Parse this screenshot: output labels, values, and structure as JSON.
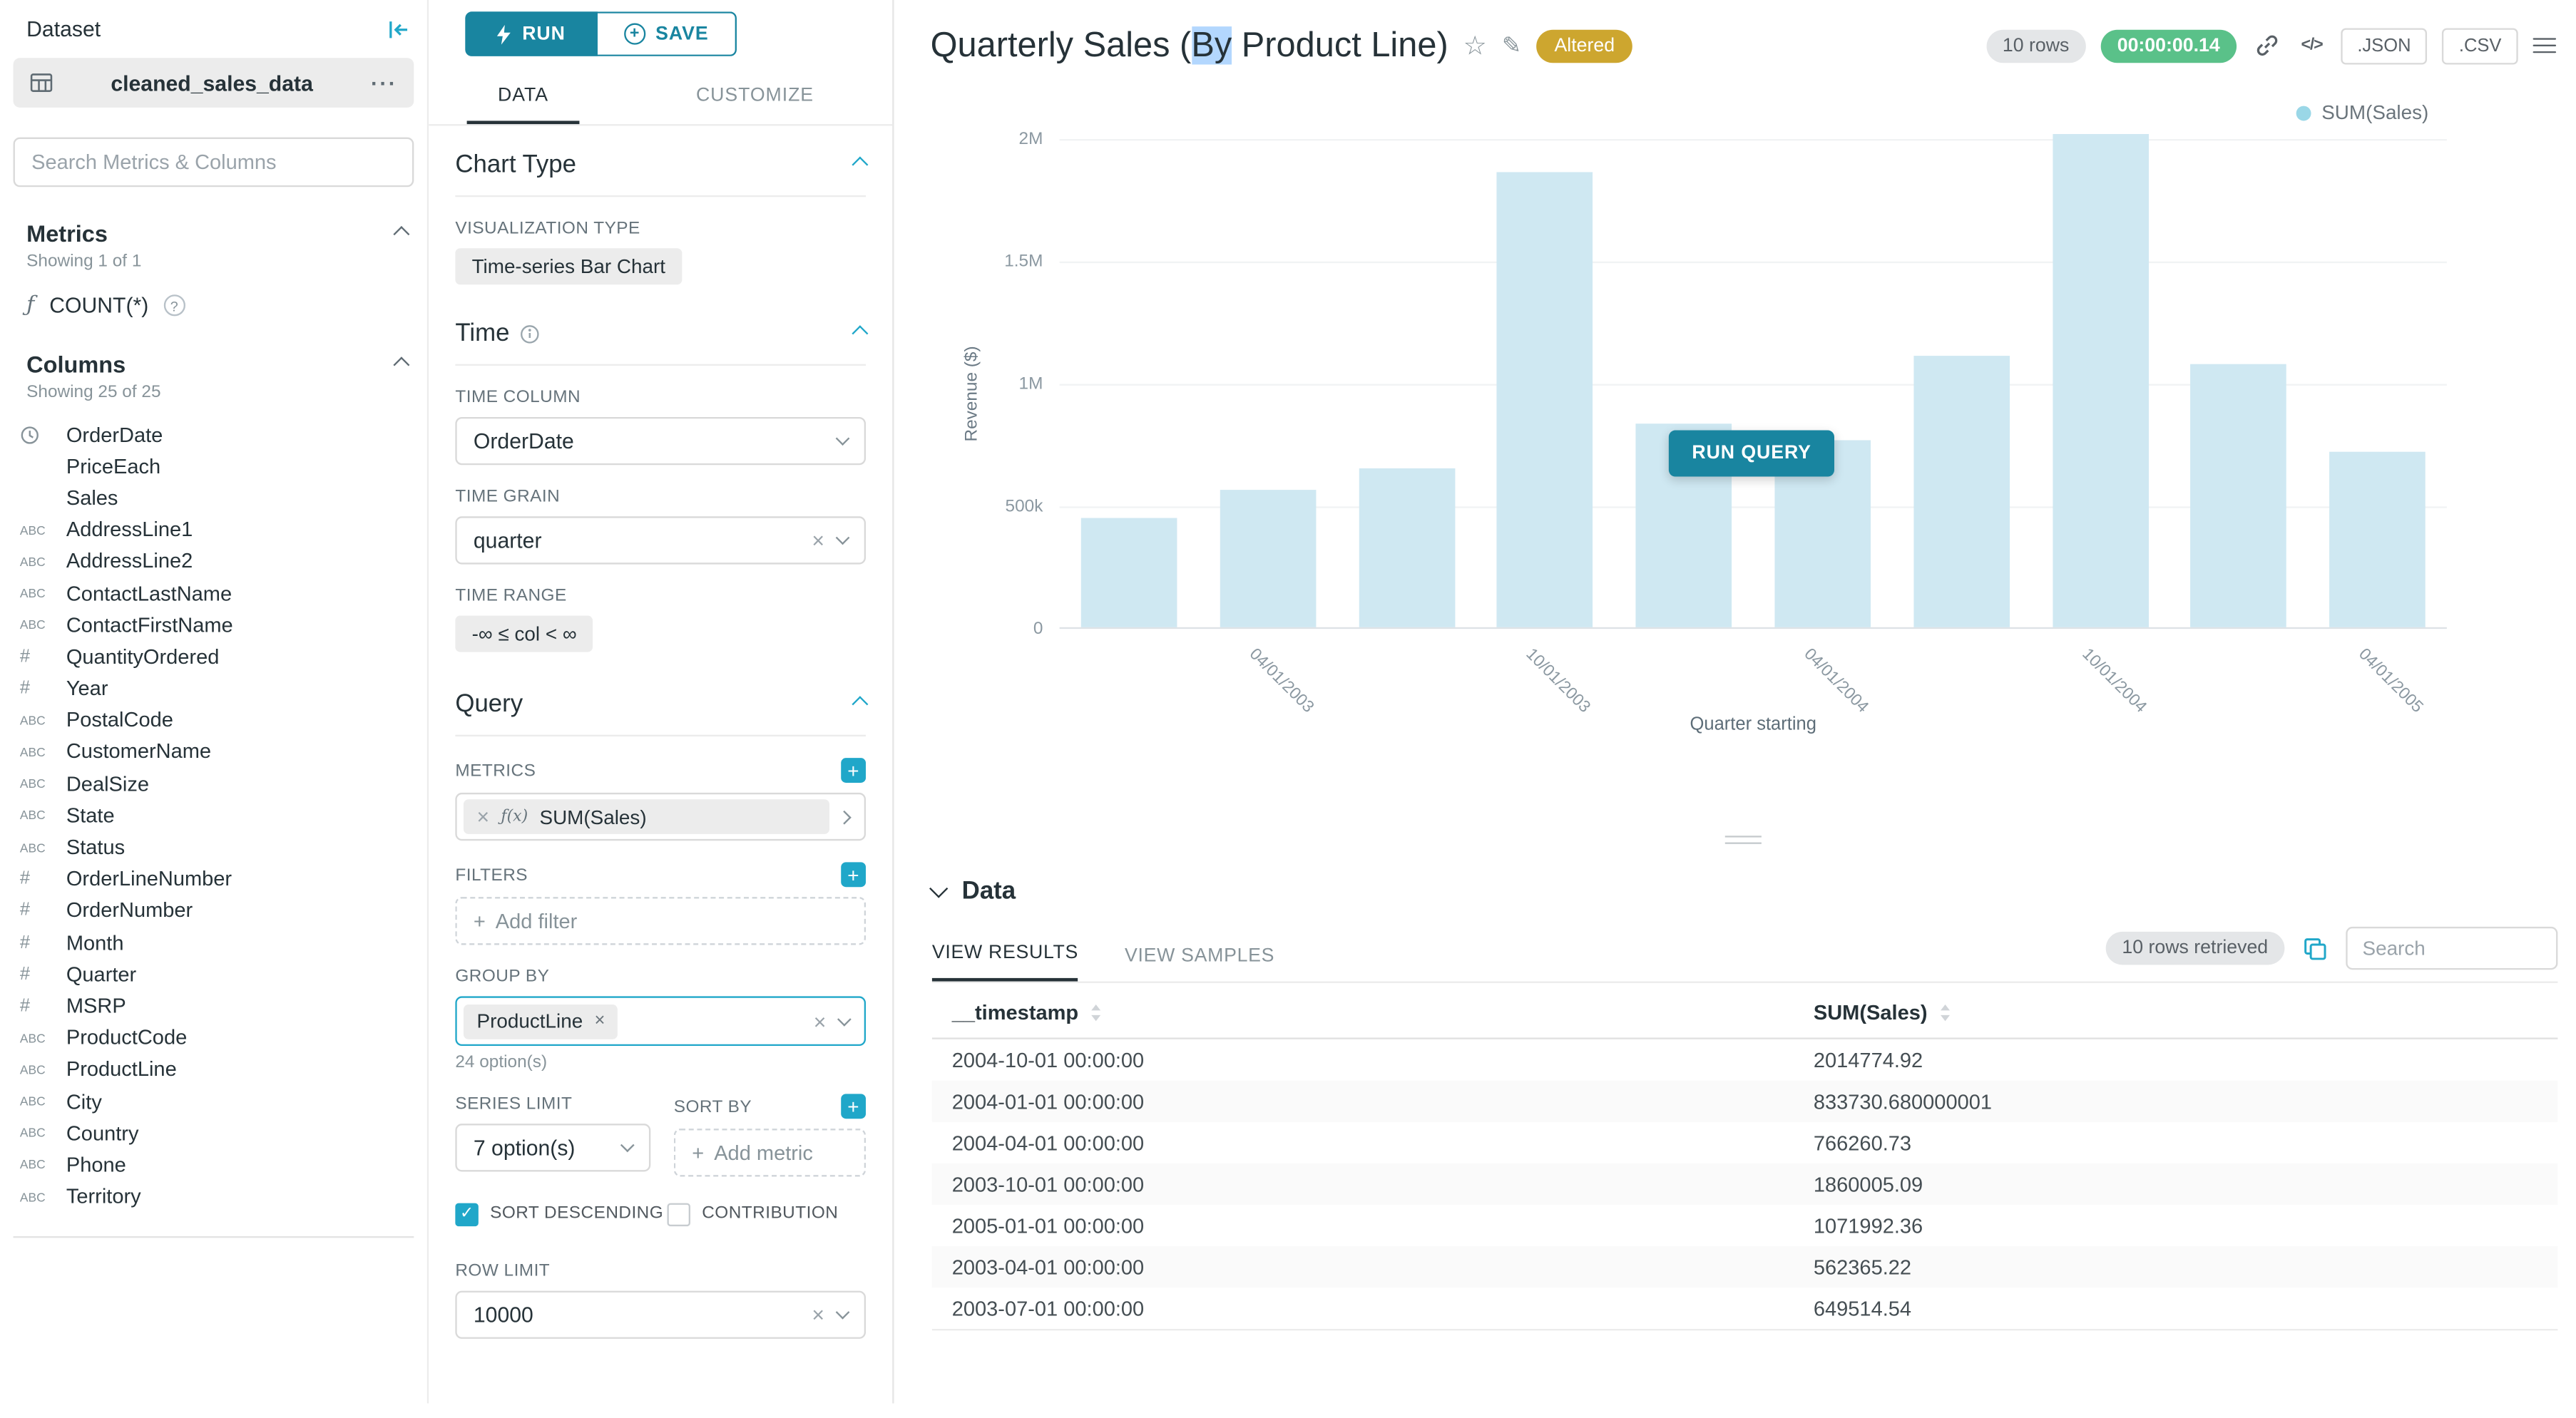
{
  "colors": {
    "primary": "#20a7c9",
    "run_button": "#1985a0",
    "bar_fill": "#cfe8f2",
    "altered_badge_bg": "#cda62f",
    "timer_badge_bg": "#5ac189",
    "selection_highlight": "#b3d7fe",
    "tab_active_underline": "#263238"
  },
  "icons": {
    "more_options": "···",
    "function": "ƒ",
    "fx": "ƒ(x)",
    "help": "?",
    "plus": "+",
    "clear": "×",
    "check": "✓",
    "star": "☆",
    "edit": "✎",
    "code": "</>"
  },
  "dataset_panel": {
    "title": "Dataset",
    "dataset_name": "cleaned_sales_data",
    "search_placeholder": "Search Metrics & Columns",
    "metrics_header": "Metrics",
    "metrics_showing": "Showing 1 of 1",
    "metrics": [
      {
        "icon": "function-icon",
        "label": "COUNT(*)"
      }
    ],
    "columns_header": "Columns",
    "columns_showing": "Showing 25 of 25",
    "columns": [
      {
        "type": "time",
        "label": "OrderDate"
      },
      {
        "type": "none",
        "label": "PriceEach"
      },
      {
        "type": "none",
        "label": "Sales"
      },
      {
        "type": "str",
        "label": "AddressLine1"
      },
      {
        "type": "str",
        "label": "AddressLine2"
      },
      {
        "type": "str",
        "label": "ContactLastName"
      },
      {
        "type": "str",
        "label": "ContactFirstName"
      },
      {
        "type": "num",
        "label": "QuantityOrdered"
      },
      {
        "type": "num",
        "label": "Year"
      },
      {
        "type": "str",
        "label": "PostalCode"
      },
      {
        "type": "str",
        "label": "CustomerName"
      },
      {
        "type": "str",
        "label": "DealSize"
      },
      {
        "type": "str",
        "label": "State"
      },
      {
        "type": "str",
        "label": "Status"
      },
      {
        "type": "num",
        "label": "OrderLineNumber"
      },
      {
        "type": "num",
        "label": "OrderNumber"
      },
      {
        "type": "num",
        "label": "Month"
      },
      {
        "type": "num",
        "label": "Quarter"
      },
      {
        "type": "num",
        "label": "MSRP"
      },
      {
        "type": "str",
        "label": "ProductCode"
      },
      {
        "type": "str",
        "label": "ProductLine"
      },
      {
        "type": "str",
        "label": "City"
      },
      {
        "type": "str",
        "label": "Country"
      },
      {
        "type": "str",
        "label": "Phone"
      },
      {
        "type": "str",
        "label": "Territory"
      }
    ]
  },
  "control_panel": {
    "run_label": "RUN",
    "save_label": "SAVE",
    "tabs": [
      "DATA",
      "CUSTOMIZE"
    ],
    "active_tab": "DATA",
    "chart_type": {
      "title": "Chart Type",
      "viz_label": "VISUALIZATION TYPE",
      "viz_value": "Time-series Bar Chart"
    },
    "time": {
      "title": "Time",
      "time_column_label": "TIME COLUMN",
      "time_column_value": "OrderDate",
      "time_grain_label": "TIME GRAIN",
      "time_grain_value": "quarter",
      "time_range_label": "TIME RANGE",
      "time_range_value": "-∞ ≤ col < ∞"
    },
    "query": {
      "title": "Query",
      "metrics_label": "METRICS",
      "metric_value": "SUM(Sales)",
      "filters_label": "FILTERS",
      "add_filter_label": "Add filter",
      "group_by_label": "GROUP BY",
      "group_by_value": "ProductLine",
      "group_by_hint": "24 option(s)",
      "series_limit_label": "SERIES LIMIT",
      "series_limit_value": "7 option(s)",
      "sort_by_label": "SORT BY",
      "add_metric_label": "Add metric",
      "sort_descending_label": "SORT DESCENDING",
      "contribution_label": "CONTRIBUTION",
      "row_limit_label": "ROW LIMIT",
      "row_limit_value": "10000"
    }
  },
  "header": {
    "title_prefix": "Quarterly Sales (",
    "title_highlight": "By",
    "title_suffix": " Product Line)",
    "altered_badge": "Altered",
    "rows_badge": "10 rows",
    "timer": "00:00:00.14",
    "json_label": ".JSON",
    "csv_label": ".CSV"
  },
  "chart_data": {
    "type": "bar",
    "title": "Quarterly Sales (By Product Line)",
    "ylabel": "Revenue ($)",
    "xlabel": "Quarter starting",
    "ylim": [
      0,
      2000000
    ],
    "grid": true,
    "legend_position": "top-right",
    "run_query_label": "RUN QUERY",
    "y_ticks": [
      {
        "label": "0",
        "value": 0
      },
      {
        "label": "500k",
        "value": 500000
      },
      {
        "label": "1M",
        "value": 1000000
      },
      {
        "label": "1.5M",
        "value": 1500000
      },
      {
        "label": "2M",
        "value": 2000000
      }
    ],
    "x": [
      "2003-01-01",
      "2003-04-01",
      "2003-07-01",
      "2003-10-01",
      "2004-01-01",
      "2004-04-01",
      "2004-07-01",
      "2004-10-01",
      "2005-01-01",
      "2005-04-01"
    ],
    "x_tick_labels": [
      {
        "bar_index": 1,
        "label": "04/01/2003"
      },
      {
        "bar_index": 3,
        "label": "10/01/2003"
      },
      {
        "bar_index": 5,
        "label": "04/01/2004"
      },
      {
        "bar_index": 7,
        "label": "10/01/2004"
      },
      {
        "bar_index": 9,
        "label": "04/01/2005"
      }
    ],
    "series": [
      {
        "name": "SUM(Sales)",
        "values": [
          445094.69,
          562365.22,
          649514.54,
          1860005.09,
          833730.68,
          766260.73,
          1109396.27,
          2014774.92,
          1071992.36,
          719494.35
        ]
      }
    ]
  },
  "data_panel": {
    "title": "Data",
    "tabs": [
      "VIEW RESULTS",
      "VIEW SAMPLES"
    ],
    "active_tab": "VIEW RESULTS",
    "rows_retrieved": "10 rows retrieved",
    "search_placeholder": "Search",
    "table": {
      "columns": [
        "__timestamp",
        "SUM(Sales)"
      ],
      "rows": [
        [
          "2004-10-01 00:00:00",
          "2014774.92"
        ],
        [
          "2004-01-01 00:00:00",
          "833730.680000001"
        ],
        [
          "2004-04-01 00:00:00",
          "766260.73"
        ],
        [
          "2003-10-01 00:00:00",
          "1860005.09"
        ],
        [
          "2005-01-01 00:00:00",
          "1071992.36"
        ],
        [
          "2003-04-01 00:00:00",
          "562365.22"
        ],
        [
          "2003-07-01 00:00:00",
          "649514.54"
        ]
      ]
    }
  }
}
